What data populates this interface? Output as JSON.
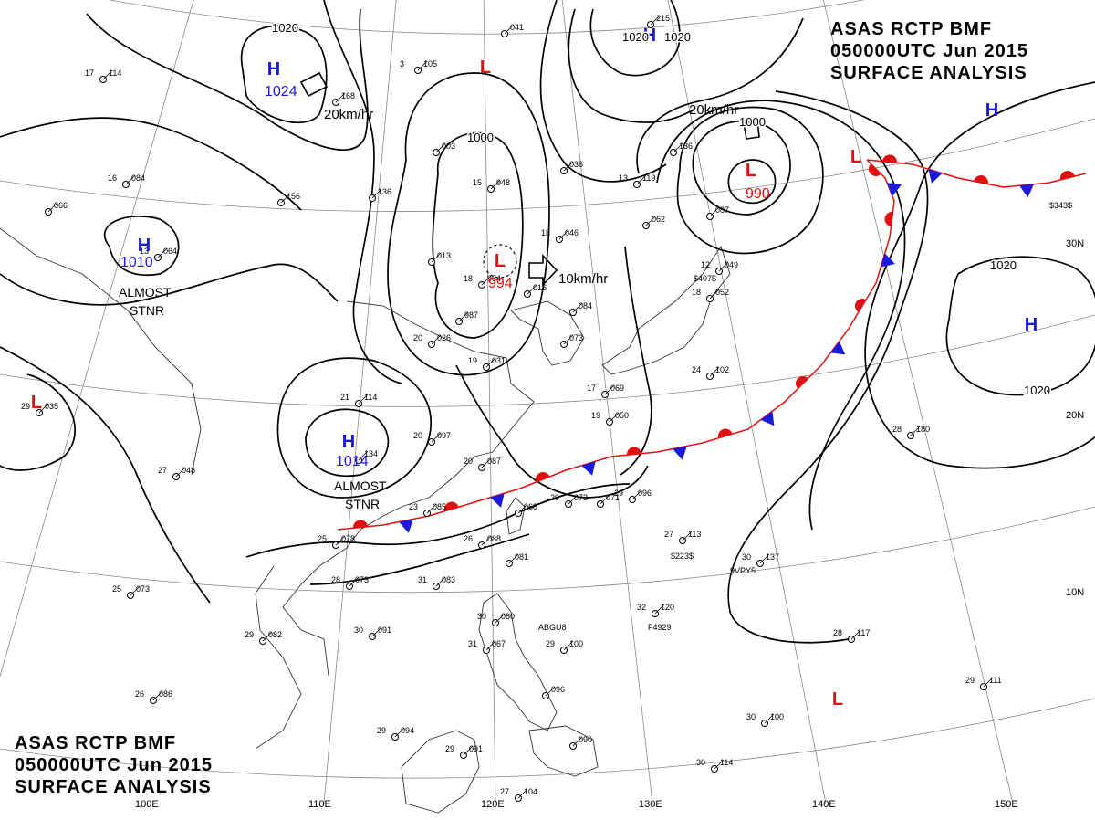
{
  "header": {
    "line1": "ASAS     RCTP     BMF",
    "line2": "050000UTC     Jun     2015",
    "line3": "SURFACE  ANALYSIS"
  },
  "longitudes": [
    "100E",
    "110E",
    "120E",
    "130E",
    "140E",
    "150E"
  ],
  "latitudes": [
    "30N",
    "20N",
    "10N"
  ],
  "isobar_labels": [
    "1020",
    "1000",
    "1020",
    "1020",
    "1000",
    "1020",
    "1020"
  ],
  "pressure_systems": [
    {
      "type": "H",
      "value": "1024"
    },
    {
      "type": "H",
      "value": ""
    },
    {
      "type": "H",
      "value": ""
    },
    {
      "type": "H",
      "value": ""
    },
    {
      "type": "H",
      "value": "1010"
    },
    {
      "type": "H",
      "value": "1014"
    },
    {
      "type": "L",
      "value": ""
    },
    {
      "type": "L",
      "value": "994"
    },
    {
      "type": "L",
      "value": "990"
    },
    {
      "type": "L",
      "value": ""
    },
    {
      "type": "L",
      "value": ""
    },
    {
      "type": "L",
      "value": ""
    }
  ],
  "annotations": [
    "ALMOST",
    "STNR",
    "ALMOST",
    "STNR"
  ],
  "motions": [
    "20km/hr",
    "10km/hr",
    "20km/hr"
  ],
  "stations": [
    {
      "t": "17",
      "p": "114"
    },
    {
      "t": "16",
      "p": "084"
    },
    {
      "t": "",
      "p": "066"
    },
    {
      "t": "13",
      "p": "064"
    },
    {
      "t": "",
      "p": "168"
    },
    {
      "t": "",
      "p": "156"
    },
    {
      "t": "",
      "p": "136"
    },
    {
      "t": "",
      "p": "041"
    },
    {
      "t": "",
      "p": "215"
    },
    {
      "t": "3",
      "p": "105"
    },
    {
      "t": "",
      "p": "003"
    },
    {
      "t": "",
      "p": "013"
    },
    {
      "t": "15",
      "p": "948"
    },
    {
      "t": "18",
      "p": "984"
    },
    {
      "t": "",
      "p": "016"
    },
    {
      "t": "18",
      "p": "046"
    },
    {
      "t": "",
      "p": "036"
    },
    {
      "t": "13",
      "p": "119"
    },
    {
      "t": "",
      "p": "136"
    },
    {
      "t": "",
      "p": "062"
    },
    {
      "t": "",
      "p": "087"
    },
    {
      "t": "12",
      "p": "049"
    },
    {
      "t": "20",
      "p": "026"
    },
    {
      "t": "",
      "p": "987"
    },
    {
      "t": "19",
      "p": "031"
    },
    {
      "t": "",
      "p": "084"
    },
    {
      "t": "",
      "p": "073"
    },
    {
      "t": "18",
      "p": "052"
    },
    {
      "t": "17",
      "p": "069"
    },
    {
      "t": "19",
      "p": "050"
    },
    {
      "t": "24",
      "p": "102"
    },
    {
      "t": "21",
      "p": "114"
    },
    {
      "t": "20",
      "p": "097"
    },
    {
      "t": "20",
      "p": "087"
    },
    {
      "t": "",
      "p": "134"
    },
    {
      "t": "29",
      "p": "035"
    },
    {
      "t": "27",
      "p": "048"
    },
    {
      "t": "23",
      "p": "085"
    },
    {
      "t": "",
      "p": "068"
    },
    {
      "t": "29",
      "p": "073"
    },
    {
      "t": "",
      "p": "071"
    },
    {
      "t": "29",
      "p": "096"
    },
    {
      "t": "25",
      "p": "078"
    },
    {
      "t": "26",
      "p": "088"
    },
    {
      "t": "",
      "p": "081"
    },
    {
      "t": "28",
      "p": "073"
    },
    {
      "t": "31",
      "p": "083"
    },
    {
      "t": "25",
      "p": "073"
    },
    {
      "t": "27",
      "p": "113"
    },
    {
      "t": "30",
      "p": "137"
    },
    {
      "t": "32",
      "p": "120"
    },
    {
      "t": "30",
      "p": "080"
    },
    {
      "t": "30",
      "p": "091"
    },
    {
      "t": "29",
      "p": "082"
    },
    {
      "t": "31",
      "p": "067"
    },
    {
      "t": "29",
      "p": "100"
    },
    {
      "t": "28",
      "p": "180"
    },
    {
      "t": "28",
      "p": "117"
    },
    {
      "t": "",
      "p": "096"
    },
    {
      "t": "26",
      "p": "086"
    },
    {
      "t": "29",
      "p": "111"
    },
    {
      "t": "30",
      "p": "100"
    },
    {
      "t": "29",
      "p": "094"
    },
    {
      "t": "29",
      "p": "091"
    },
    {
      "t": "",
      "p": "090"
    },
    {
      "t": "30",
      "p": "114"
    },
    {
      "t": "27",
      "p": "104"
    }
  ],
  "ship_ids": [
    "$343$",
    "$407$",
    "$223$",
    "9VPY5",
    "F4929",
    "ABGU8"
  ],
  "colors": {
    "isobar": "#000000",
    "high": "#1a1adc",
    "low": "#e01010",
    "warm_front": "#e01010",
    "cold_front": "#1a1adc",
    "coast": "#333333",
    "grid": "#888888"
  }
}
